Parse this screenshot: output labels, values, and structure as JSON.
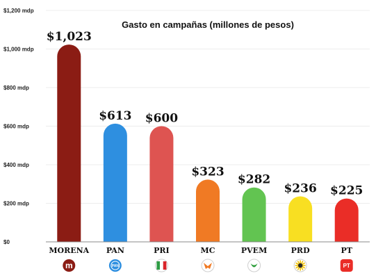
{
  "chart_data": {
    "type": "bar",
    "title": "Gasto en campañas (millones de pesos)",
    "xlabel": "",
    "ylabel": "",
    "ylim": [
      0,
      1200
    ],
    "yticks": [
      0,
      200,
      400,
      600,
      800,
      1000,
      1200
    ],
    "ytick_labels": [
      "$0",
      "$200 mdp",
      "$400 mdp",
      "$600 mdp",
      "$800 mdp",
      "$1,000 mdp",
      "$1,200 mdp"
    ],
    "grid": true,
    "legend": "none",
    "categories": [
      "MORENA",
      "PAN",
      "PRI",
      "MC",
      "PVEM",
      "PRD",
      "PT"
    ],
    "values": [
      1023,
      613,
      600,
      323,
      282,
      236,
      225
    ],
    "data_labels": [
      "$1,023",
      "$613",
      "$600",
      "$323",
      "$282",
      "$236",
      "$225"
    ],
    "bar_colors": [
      "#8b1c14",
      "#2e8fe0",
      "#de5451",
      "#f07a24",
      "#62c451",
      "#f8df22",
      "#ea2d27"
    ],
    "logos": [
      {
        "party": "MORENA",
        "icon": "morena-logo-icon",
        "color": "#8b1c14",
        "text": "m"
      },
      {
        "party": "PAN",
        "icon": "pan-logo-icon",
        "color": "#2e8fe0",
        "text": "PAN"
      },
      {
        "party": "PRI",
        "icon": "pri-logo-icon",
        "color": "#de5451",
        "text": ""
      },
      {
        "party": "MC",
        "icon": "mc-logo-icon",
        "color": "#f07a24",
        "text": ""
      },
      {
        "party": "PVEM",
        "icon": "pvem-logo-icon",
        "color": "#62c451",
        "text": ""
      },
      {
        "party": "PRD",
        "icon": "prd-logo-icon",
        "color": "#f8df22",
        "text": ""
      },
      {
        "party": "PT",
        "icon": "pt-logo-icon",
        "color": "#ea2d27",
        "text": "PT"
      }
    ]
  }
}
